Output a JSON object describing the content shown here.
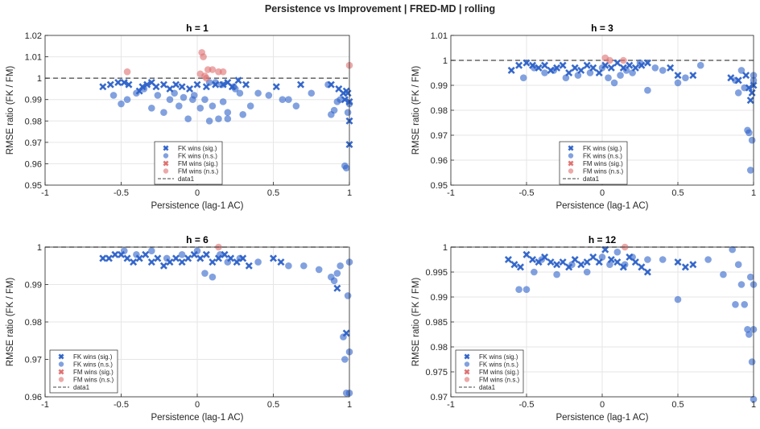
{
  "figure_title": "Persistence vs Improvement  |  FRED-MD  |  rolling",
  "colors": {
    "fk": "#2f63c9",
    "fm": "#e07070",
    "axis": "#262626",
    "grid": "#e6e6e6"
  },
  "chart_data": [
    {
      "type": "scatter",
      "title": "h = 1",
      "xlabel": "Persistence (lag-1 AC)",
      "ylabel": "RMSE ratio (FK / FM)",
      "xlim": [
        -1,
        1
      ],
      "ylim": [
        0.95,
        1.02
      ],
      "xticks": [
        "-1",
        "-0.5",
        "0",
        "0.5",
        "1"
      ],
      "yticks": [
        "0.95",
        "0.96",
        "0.97",
        "0.98",
        "0.99",
        "1",
        "1.01",
        "1.02"
      ],
      "grid": true,
      "legend_position": "bottom-center",
      "legend": [
        "FK wins (sig.)",
        "FK wins (n.s.)",
        "FM wins (sig.)",
        "FM wins (n.s.)",
        "data1"
      ],
      "series": [
        {
          "name": "FK wins (sig.)",
          "marker": "x",
          "color": "#2f63c9",
          "x": [
            -0.62,
            -0.57,
            -0.52,
            -0.48,
            -0.45,
            -0.38,
            -0.36,
            -0.33,
            -0.3,
            -0.27,
            -0.22,
            -0.18,
            -0.14,
            -0.1,
            -0.05,
            0.0,
            0.06,
            0.12,
            0.17,
            0.2,
            0.23,
            0.27,
            0.32,
            0.52,
            0.68,
            0.88,
            0.93,
            0.96,
            0.97,
            0.98,
            0.99,
            1.0,
            1.0,
            1.0
          ],
          "y": [
            0.996,
            0.997,
            0.998,
            0.998,
            0.997,
            0.994,
            0.996,
            0.997,
            0.998,
            0.996,
            0.997,
            0.995,
            0.997,
            0.996,
            0.995,
            0.997,
            0.996,
            0.997,
            0.997,
            0.998,
            0.996,
            0.999,
            0.997,
            0.996,
            0.997,
            0.997,
            0.995,
            0.993,
            0.99,
            0.994,
            0.993,
            0.989,
            0.98,
            0.969
          ]
        },
        {
          "name": "FK wins (n.s.)",
          "marker": "o",
          "color": "#2f63c9",
          "x": [
            -0.55,
            -0.5,
            -0.46,
            -0.4,
            -0.35,
            -0.3,
            -0.26,
            -0.22,
            -0.18,
            -0.15,
            -0.12,
            -0.09,
            -0.06,
            -0.02,
            0.02,
            0.05,
            0.08,
            0.1,
            0.14,
            0.17,
            0.2,
            0.24,
            0.28,
            0.3,
            0.35,
            0.4,
            0.47,
            0.56,
            0.6,
            0.65,
            0.75,
            0.86,
            0.88,
            0.9,
            0.92,
            0.94,
            0.97,
            0.98,
            0.99,
            1.0,
            0.08,
            0.12,
            0.16,
            0.2,
            -0.03,
            0.25
          ],
          "y": [
            0.992,
            0.988,
            0.99,
            0.993,
            0.995,
            0.986,
            0.992,
            0.984,
            0.99,
            0.993,
            0.987,
            0.991,
            0.981,
            0.992,
            0.986,
            0.99,
            0.98,
            0.987,
            0.981,
            0.989,
            0.981,
            0.996,
            0.993,
            0.983,
            0.987,
            0.993,
            0.992,
            0.99,
            0.99,
            0.987,
            0.993,
            0.997,
            0.983,
            0.985,
            0.989,
            0.99,
            0.959,
            0.958,
            0.984,
            0.988,
            0.998,
            0.998,
            0.997,
            0.984,
            0.99,
            0.995
          ]
        },
        {
          "name": "FM wins (sig.)",
          "marker": "x",
          "color": "#e07070",
          "x": [],
          "y": []
        },
        {
          "name": "FM wins (n.s.)",
          "marker": "o",
          "color": "#e07070",
          "x": [
            -0.46,
            0.02,
            0.03,
            0.05,
            0.07,
            0.1,
            0.14,
            0.17,
            1.0,
            0.04,
            0.06
          ],
          "y": [
            1.003,
            1.002,
            1.012,
            1.001,
            1.004,
            1.004,
            1.003,
            1.003,
            1.006,
            1.01,
            1.0
          ],
          "note": ""
        },
        {
          "name": "data1",
          "type": "reference-line",
          "y_value": 1,
          "style": "dashed"
        }
      ]
    },
    {
      "type": "scatter",
      "title": "h = 3",
      "xlabel": "Persistence (lag-1 AC)",
      "ylabel": "RMSE ratio (FK / FM)",
      "xlim": [
        -1,
        1
      ],
      "ylim": [
        0.95,
        1.01
      ],
      "xticks": [
        "-1",
        "-0.5",
        "0",
        "0.5",
        "1"
      ],
      "yticks": [
        "0.95",
        "0.96",
        "0.97",
        "0.98",
        "0.99",
        "1",
        "1.01"
      ],
      "grid": true,
      "legend_position": "bottom-center",
      "legend": [
        "FK wins (sig.)",
        "FK wins (n.s.)",
        "FM wins (sig.)",
        "FM wins (n.s.)",
        "data1"
      ],
      "series": [
        {
          "name": "FK wins (sig.)",
          "marker": "x",
          "color": "#2f63c9",
          "x": [
            -0.6,
            -0.55,
            -0.5,
            -0.46,
            -0.42,
            -0.38,
            -0.34,
            -0.3,
            -0.26,
            -0.22,
            -0.18,
            -0.14,
            -0.1,
            -0.06,
            -0.02,
            0.02,
            0.06,
            0.1,
            0.14,
            0.18,
            0.22,
            0.26,
            0.3,
            0.45,
            0.5,
            0.6,
            0.85,
            0.9,
            0.95,
            0.97,
            0.98,
            0.99,
            1.0
          ],
          "y": [
            0.996,
            0.998,
            0.999,
            0.998,
            0.997,
            0.998,
            0.996,
            0.997,
            0.998,
            0.995,
            0.997,
            0.996,
            0.998,
            0.997,
            0.995,
            0.998,
            0.997,
            0.999,
            0.997,
            0.998,
            0.997,
            0.998,
            0.999,
            0.997,
            0.994,
            0.994,
            0.993,
            0.992,
            0.994,
            0.989,
            0.984,
            0.987,
            0.99
          ]
        },
        {
          "name": "FK wins (n.s.)",
          "marker": "o",
          "color": "#2f63c9",
          "x": [
            -0.52,
            -0.45,
            -0.38,
            -0.32,
            -0.24,
            -0.16,
            -0.08,
            0.0,
            0.04,
            0.08,
            0.12,
            0.16,
            0.2,
            0.25,
            0.3,
            0.35,
            0.4,
            0.5,
            0.55,
            0.65,
            0.88,
            0.9,
            0.92,
            0.94,
            0.96,
            0.97,
            0.98,
            0.99,
            1.0,
            1.0
          ],
          "y": [
            0.993,
            0.997,
            0.995,
            0.996,
            0.993,
            0.994,
            0.995,
            0.997,
            0.993,
            0.991,
            0.994,
            0.996,
            0.995,
            0.999,
            0.988,
            0.997,
            0.996,
            0.991,
            0.993,
            0.998,
            0.992,
            0.987,
            0.996,
            0.989,
            0.972,
            0.971,
            0.956,
            0.968,
            0.994,
            0.992
          ]
        },
        {
          "name": "FM wins (sig.)",
          "marker": "x",
          "color": "#e07070",
          "x": [],
          "y": []
        },
        {
          "name": "FM wins (n.s.)",
          "marker": "o",
          "color": "#e07070",
          "x": [
            0.02,
            0.05,
            0.14
          ],
          "y": [
            1.001,
            1.0,
            1.0
          ]
        },
        {
          "name": "data1",
          "type": "reference-line",
          "y_value": 1,
          "style": "dashed"
        }
      ]
    },
    {
      "type": "scatter",
      "title": "h = 6",
      "xlabel": "Persistence (lag-1 AC)",
      "ylabel": "RMSE ratio (FK / FM)",
      "xlim": [
        -1,
        1
      ],
      "ylim": [
        0.96,
        1.0
      ],
      "xticks": [
        "-1",
        "-0.5",
        "0",
        "0.5",
        "1"
      ],
      "yticks": [
        "0.96",
        "0.97",
        "0.98",
        "0.99",
        "1"
      ],
      "grid": true,
      "legend_position": "bottom-left",
      "legend": [
        "FK wins (sig.)",
        "FK wins (n.s.)",
        "FM wins (sig.)",
        "FM wins (n.s.)",
        "data1"
      ],
      "series": [
        {
          "name": "FK wins (sig.)",
          "marker": "x",
          "color": "#2f63c9",
          "x": [
            -0.62,
            -0.58,
            -0.54,
            -0.5,
            -0.46,
            -0.42,
            -0.38,
            -0.34,
            -0.3,
            -0.26,
            -0.22,
            -0.18,
            -0.14,
            -0.1,
            -0.06,
            -0.02,
            0.02,
            0.06,
            0.1,
            0.14,
            0.18,
            0.22,
            0.26,
            0.3,
            0.34,
            0.5,
            0.55,
            0.92,
            0.98
          ],
          "y": [
            0.997,
            0.997,
            0.998,
            0.998,
            0.997,
            0.996,
            0.997,
            0.998,
            0.996,
            0.997,
            0.995,
            0.996,
            0.997,
            0.996,
            0.997,
            0.998,
            0.997,
            0.998,
            0.996,
            0.997,
            0.998,
            0.997,
            0.996,
            0.997,
            0.995,
            0.997,
            0.996,
            0.989,
            0.977
          ]
        },
        {
          "name": "FK wins (n.s.)",
          "marker": "o",
          "color": "#2f63c9",
          "x": [
            -0.48,
            -0.4,
            -0.3,
            -0.2,
            -0.1,
            0.0,
            0.05,
            0.1,
            0.15,
            0.2,
            0.28,
            0.4,
            0.6,
            0.7,
            0.8,
            0.88,
            0.9,
            0.92,
            0.94,
            0.96,
            0.97,
            0.98,
            0.99,
            1.0,
            1.0,
            1.0
          ],
          "y": [
            0.999,
            0.998,
            0.999,
            0.997,
            0.998,
            0.999,
            0.993,
            0.992,
            0.998,
            0.996,
            0.997,
            0.996,
            0.995,
            0.995,
            0.994,
            0.992,
            0.991,
            0.993,
            0.995,
            0.976,
            0.97,
            0.961,
            0.987,
            0.972,
            0.996,
            0.961
          ]
        },
        {
          "name": "FM wins (sig.)",
          "marker": "x",
          "color": "#e07070",
          "x": [],
          "y": []
        },
        {
          "name": "FM wins (n.s.)",
          "marker": "o",
          "color": "#e07070",
          "x": [
            0.14
          ],
          "y": [
            1.0
          ]
        },
        {
          "name": "data1",
          "type": "reference-line",
          "y_value": 1,
          "style": "dashed"
        }
      ]
    },
    {
      "type": "scatter",
      "title": "h = 12",
      "xlabel": "Persistence (lag-1 AC)",
      "ylabel": "RMSE ratio (FK / FM)",
      "xlim": [
        -1,
        1
      ],
      "ylim": [
        0.97,
        1.0
      ],
      "xticks": [
        "-1",
        "-0.5",
        "0",
        "0.5",
        "1"
      ],
      "yticks": [
        "0.97",
        "0.975",
        "0.98",
        "0.985",
        "0.99",
        "0.995",
        "1"
      ],
      "grid": true,
      "legend_position": "bottom-left",
      "legend": [
        "FK wins (sig.)",
        "FK wins (n.s.)",
        "FM wins (sig.)",
        "FM wins (n.s.)",
        "data1"
      ],
      "series": [
        {
          "name": "FK wins (sig.)",
          "marker": "x",
          "color": "#2f63c9",
          "x": [
            -0.62,
            -0.58,
            -0.54,
            -0.5,
            -0.46,
            -0.42,
            -0.38,
            -0.34,
            -0.3,
            -0.26,
            -0.22,
            -0.18,
            -0.14,
            -0.1,
            -0.06,
            -0.02,
            0.02,
            0.06,
            0.1,
            0.14,
            0.18,
            0.22,
            0.26,
            0.3,
            0.5,
            0.55,
            0.6
          ],
          "y": [
            0.9975,
            0.9965,
            0.996,
            0.9985,
            0.9975,
            0.997,
            0.998,
            0.997,
            0.9965,
            0.997,
            0.996,
            0.9975,
            0.9965,
            0.997,
            0.998,
            0.997,
            0.9995,
            0.9975,
            0.997,
            0.996,
            0.998,
            0.997,
            0.996,
            0.995,
            0.997,
            0.996,
            0.9965
          ]
        },
        {
          "name": "FK wins (n.s.)",
          "marker": "o",
          "color": "#2f63c9",
          "x": [
            -0.55,
            -0.5,
            -0.45,
            -0.4,
            -0.3,
            -0.2,
            -0.1,
            0.0,
            0.05,
            0.1,
            0.15,
            0.2,
            0.3,
            0.4,
            0.5,
            0.7,
            0.8,
            0.86,
            0.88,
            0.9,
            0.92,
            0.94,
            0.96,
            0.97,
            0.98,
            0.99,
            1.0,
            1.0,
            1.0
          ],
          "y": [
            0.9915,
            0.9915,
            0.995,
            0.9975,
            0.9945,
            0.9965,
            0.995,
            0.998,
            0.9965,
            0.999,
            0.9965,
            0.998,
            0.9975,
            0.9975,
            0.9895,
            0.9975,
            0.9945,
            0.9995,
            0.9885,
            0.9965,
            0.9925,
            0.9885,
            0.9835,
            0.9825,
            0.994,
            0.977,
            0.9695,
            0.9835,
            0.9925
          ]
        },
        {
          "name": "FM wins (sig.)",
          "marker": "x",
          "color": "#e07070",
          "x": [],
          "y": []
        },
        {
          "name": "FM wins (n.s.)",
          "marker": "o",
          "color": "#e07070",
          "x": [
            0.15
          ],
          "y": [
            1.0
          ]
        },
        {
          "name": "data1",
          "type": "reference-line",
          "y_value": 1,
          "style": "dashed"
        }
      ]
    }
  ]
}
